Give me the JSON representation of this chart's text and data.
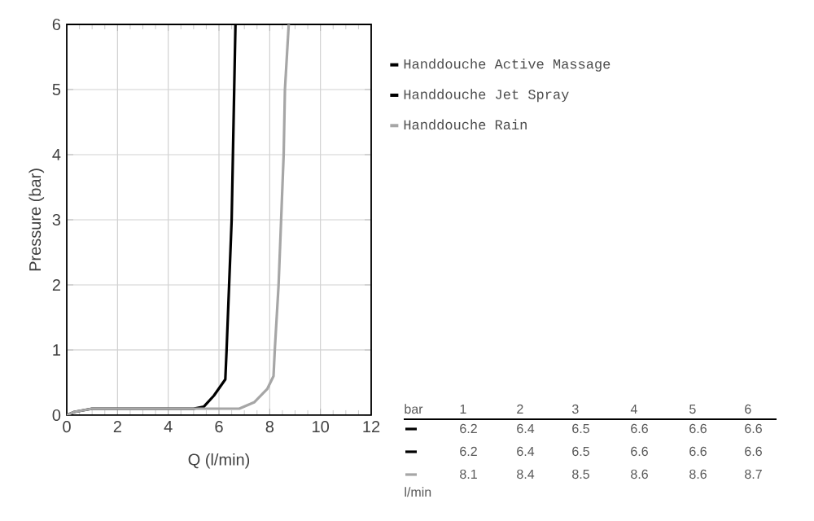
{
  "chart_data": {
    "type": "line",
    "xlabel": "Q (l/min)",
    "ylabel": "Pressure (bar)",
    "xlim": [
      0,
      12
    ],
    "ylim": [
      0,
      6
    ],
    "xticks": [
      0,
      2,
      4,
      6,
      8,
      10,
      12
    ],
    "yticks": [
      0,
      1,
      2,
      3,
      4,
      5,
      6
    ],
    "grid": true,
    "legend": "right",
    "marker": "none",
    "line_style": "solid",
    "series": [
      {
        "name": "Handdouche Active Massage",
        "color": "#000000",
        "x": [
          0,
          0.3,
          1,
          2,
          4,
          5,
          5.4,
          5.8,
          6.25,
          6.3,
          6.4,
          6.5,
          6.55,
          6.6,
          6.65
        ],
        "values": [
          0,
          0.05,
          0.1,
          0.1,
          0.1,
          0.1,
          0.13,
          0.3,
          0.55,
          1,
          2,
          3,
          4,
          5,
          6
        ]
      },
      {
        "name": "Handdouche Jet Spray",
        "color": "#000000"
      },
      {
        "name": "Handdouche Rain",
        "color": "#a6a6a6",
        "x": [
          0,
          0.3,
          1,
          2,
          4,
          6,
          6.8,
          7.4,
          7.9,
          8.15,
          8.2,
          8.35,
          8.45,
          8.55,
          8.6,
          8.75
        ],
        "values": [
          0,
          0.05,
          0.1,
          0.1,
          0.1,
          0.1,
          0.1,
          0.2,
          0.4,
          0.6,
          1,
          2,
          3,
          4,
          5,
          6
        ]
      }
    ],
    "annotations": [
      "bar",
      "1",
      "2",
      "3",
      "4",
      "5",
      "6",
      "6.2",
      "6.4",
      "6.5",
      "6.6",
      "6.6",
      "6.6",
      "6.2",
      "6.4",
      "6.5",
      "6.6",
      "6.6",
      "6.6",
      "8.1",
      "8.4",
      "8.5",
      "8.6",
      "8.6",
      "8.7",
      "l/min"
    ]
  }
}
